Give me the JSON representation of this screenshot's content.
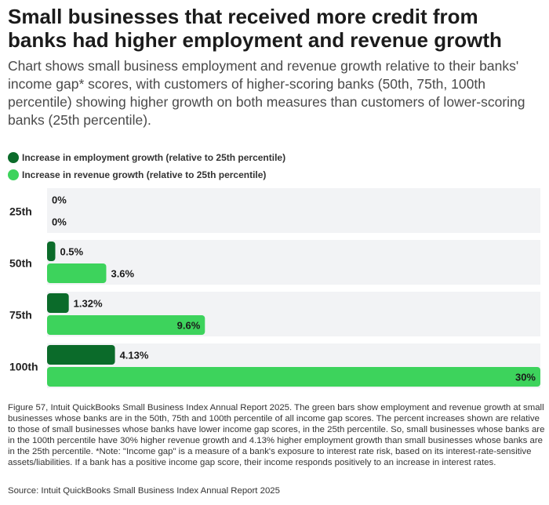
{
  "title": "Small businesses that received more credit from banks had higher employment and revenue growth",
  "subtitle": "Chart shows small business employment and revenue growth relative to their banks' income gap* scores, with customers of higher-scoring banks (50th, 75th, 100th percentile) showing higher growth on both measures than customers of lower-scoring banks (25th percentile).",
  "colors": {
    "employment": "#0b6b2a",
    "revenue": "#3dd35c",
    "row_background": "#f2f3f5"
  },
  "chart_data": {
    "type": "bar",
    "orientation": "horizontal",
    "categories": [
      "25th",
      "50th",
      "75th",
      "100th"
    ],
    "series": [
      {
        "name": "Increase in employment growth (relative to 25th percentile)",
        "values": [
          0,
          0.5,
          1.32,
          4.13
        ],
        "labels": [
          "0%",
          "0.5%",
          "1.32%",
          "4.13%"
        ]
      },
      {
        "name": "Increase in revenue growth (relative to 25th percentile)",
        "values": [
          0,
          3.6,
          9.6,
          30
        ],
        "labels": [
          "0%",
          "3.6%",
          "9.6%",
          "30%"
        ]
      }
    ],
    "xlim": [
      0,
      30
    ],
    "grid": false,
    "legend_position": "top-left"
  },
  "footnote": "Figure 57, Intuit QuickBooks Small Business Index Annual Report 2025. The green bars show employment and revenue growth at small businesses whose banks are in the 50th, 75th and 100th percentile of all income gap scores. The percent increases shown are relative to those of small businesses whose banks have lower income gap scores, in the 25th percentile. So, small businesses whose banks are in the 100th percentile have 30% higher revenue growth and 4.13% higher employment growth than small businesses whose banks are in the 25th percentile. *Note: \"Income gap\" is a measure of a bank's exposure to interest rate risk, based on its interest-rate-sensitive assets/liabilities. If a bank has a positive income gap score, their income responds positively to an increase in interest rates.",
  "source": "Source: Intuit QuickBooks Small Business Index Annual Report 2025"
}
